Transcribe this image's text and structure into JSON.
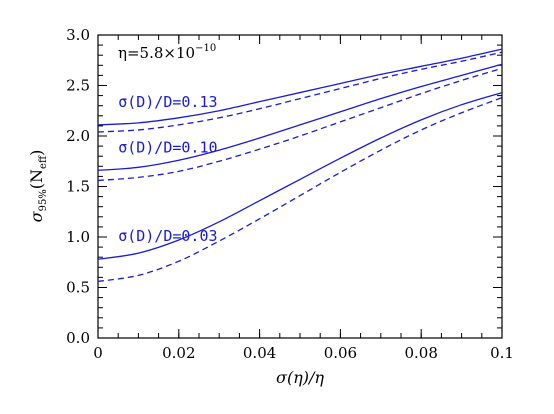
{
  "chart_data": {
    "type": "line",
    "title": "",
    "xlabel": "σ(η)/η",
    "ylabel": {
      "main": "σ",
      "sub": "95%",
      "arg_open": "(N",
      "arg_sub": "eff",
      "arg_close": ")"
    },
    "xlim": [
      0,
      0.1
    ],
    "ylim": [
      0,
      3.0
    ],
    "x_ticks": [
      "0",
      "0.02",
      "0.04",
      "0.06",
      "0.08",
      "0.1"
    ],
    "x_tick_values": [
      0,
      0.02,
      0.04,
      0.06,
      0.08,
      0.1
    ],
    "y_ticks": [
      "0.0",
      "0.5",
      "1.0",
      "1.5",
      "2.0",
      "2.5",
      "3.0"
    ],
    "y_tick_values": [
      0,
      0.5,
      1.0,
      1.5,
      2.0,
      2.5,
      3.0
    ],
    "annotation": {
      "base": "η=5.8×10",
      "exponent": "−10"
    },
    "line_color": "#1a1adc",
    "series": [
      {
        "label": "σ(D)/D=0.13",
        "style": "solid",
        "x": [
          0,
          0.01,
          0.02,
          0.03,
          0.04,
          0.05,
          0.06,
          0.07,
          0.08,
          0.09,
          0.1
        ],
        "y": [
          2.11,
          2.13,
          2.18,
          2.25,
          2.34,
          2.43,
          2.52,
          2.61,
          2.69,
          2.77,
          2.86
        ]
      },
      {
        "label": "",
        "style": "dashed",
        "x": [
          0,
          0.01,
          0.02,
          0.03,
          0.04,
          0.05,
          0.06,
          0.07,
          0.08,
          0.09,
          0.1
        ],
        "y": [
          2.04,
          2.06,
          2.11,
          2.18,
          2.27,
          2.37,
          2.47,
          2.57,
          2.66,
          2.74,
          2.83
        ]
      },
      {
        "label": "σ(D)/D=0.10",
        "style": "solid",
        "x": [
          0,
          0.01,
          0.02,
          0.03,
          0.04,
          0.05,
          0.06,
          0.07,
          0.08,
          0.09,
          0.1
        ],
        "y": [
          1.66,
          1.69,
          1.76,
          1.86,
          1.98,
          2.11,
          2.24,
          2.37,
          2.49,
          2.6,
          2.71
        ]
      },
      {
        "label": "",
        "style": "dashed",
        "x": [
          0,
          0.01,
          0.02,
          0.03,
          0.04,
          0.05,
          0.06,
          0.07,
          0.08,
          0.09,
          0.1
        ],
        "y": [
          1.56,
          1.59,
          1.65,
          1.75,
          1.87,
          2.0,
          2.14,
          2.28,
          2.42,
          2.55,
          2.67
        ]
      },
      {
        "label": "σ(D)/D=0.03",
        "style": "solid",
        "x": [
          0,
          0.01,
          0.02,
          0.03,
          0.04,
          0.05,
          0.06,
          0.07,
          0.08,
          0.09,
          0.1
        ],
        "y": [
          0.78,
          0.84,
          0.97,
          1.15,
          1.36,
          1.57,
          1.78,
          1.98,
          2.16,
          2.31,
          2.43
        ]
      },
      {
        "label": "",
        "style": "dashed",
        "x": [
          0,
          0.01,
          0.02,
          0.03,
          0.04,
          0.05,
          0.06,
          0.07,
          0.08,
          0.09,
          0.1
        ],
        "y": [
          0.56,
          0.62,
          0.76,
          0.96,
          1.18,
          1.41,
          1.64,
          1.86,
          2.06,
          2.23,
          2.38
        ]
      }
    ],
    "grid": false,
    "legend": "none"
  }
}
